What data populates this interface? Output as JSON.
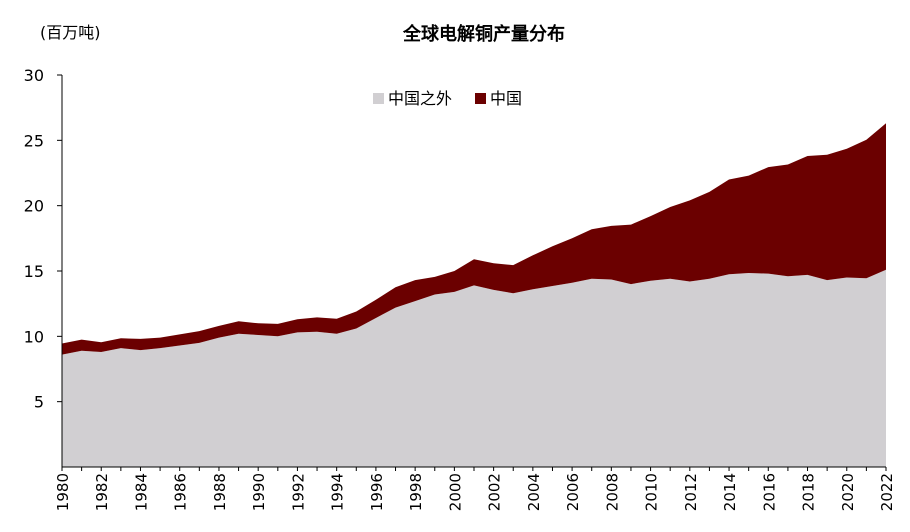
{
  "chart_data": {
    "type": "area",
    "stacked": true,
    "title": "全球电解铜产量分布",
    "unit_label": "(百万吨)",
    "xlabel": "",
    "ylabel": "",
    "ylim": [
      0,
      30
    ],
    "y_ticks": [
      5,
      10,
      15,
      20,
      25,
      30
    ],
    "x": [
      1980,
      1981,
      1982,
      1983,
      1984,
      1985,
      1986,
      1987,
      1988,
      1989,
      1990,
      1991,
      1992,
      1993,
      1994,
      1995,
      1996,
      1997,
      1998,
      1999,
      2000,
      2001,
      2002,
      2003,
      2004,
      2005,
      2006,
      2007,
      2008,
      2009,
      2010,
      2011,
      2012,
      2013,
      2014,
      2015,
      2016,
      2017,
      2018,
      2019,
      2020,
      2021,
      2022
    ],
    "x_ticks": [
      1980,
      1982,
      1984,
      1986,
      1988,
      1990,
      1992,
      1994,
      1996,
      1998,
      2000,
      2002,
      2004,
      2006,
      2008,
      2010,
      2012,
      2014,
      2016,
      2018,
      2020,
      2022
    ],
    "legend_position": "top-center",
    "grid": false,
    "series": [
      {
        "name": "中国之外",
        "color": "#d1cfd2",
        "values": [
          8.6,
          8.9,
          8.8,
          9.1,
          8.95,
          9.1,
          9.3,
          9.5,
          9.9,
          10.2,
          10.1,
          10.0,
          10.3,
          10.35,
          10.2,
          10.6,
          11.4,
          12.2,
          12.7,
          13.2,
          13.4,
          13.9,
          13.55,
          13.3,
          13.6,
          13.85,
          14.1,
          14.4,
          14.35,
          14.0,
          14.25,
          14.4,
          14.2,
          14.4,
          14.75,
          14.85,
          14.8,
          14.6,
          14.7,
          14.3,
          14.5,
          14.45,
          15.1
        ]
      },
      {
        "name": "中国",
        "color": "#6b0000",
        "values": [
          0.85,
          0.85,
          0.75,
          0.75,
          0.85,
          0.8,
          0.85,
          0.9,
          0.9,
          0.95,
          0.9,
          0.95,
          1.0,
          1.1,
          1.15,
          1.3,
          1.4,
          1.55,
          1.6,
          1.35,
          1.6,
          2.0,
          2.05,
          2.15,
          2.6,
          3.05,
          3.4,
          3.8,
          4.1,
          4.55,
          4.95,
          5.5,
          6.2,
          6.65,
          7.25,
          7.45,
          8.15,
          8.55,
          9.1,
          9.6,
          9.85,
          10.6,
          11.2
        ]
      }
    ]
  }
}
